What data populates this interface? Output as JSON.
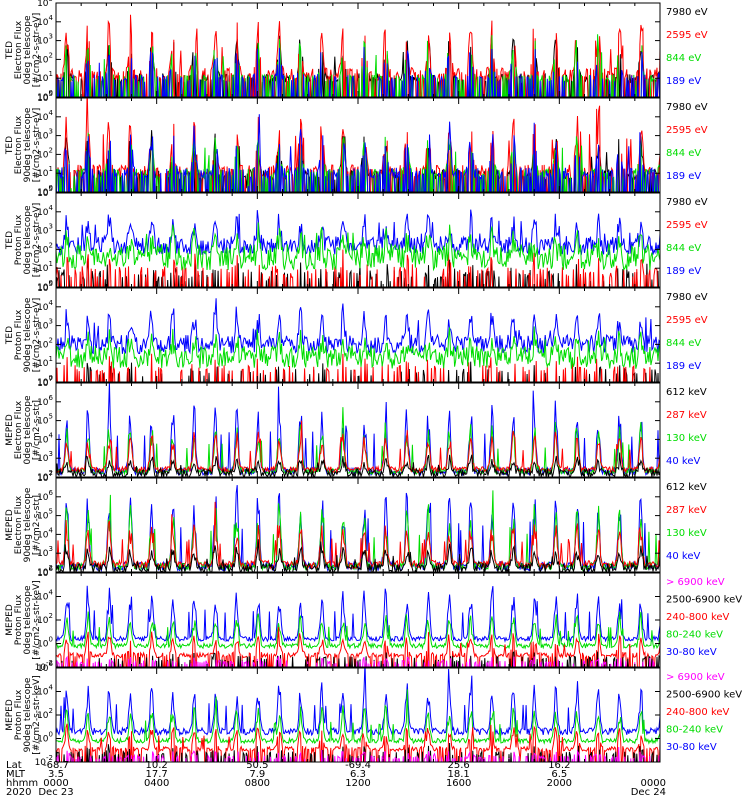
{
  "chart_data": [
    {
      "type": "line",
      "ylabel_lines": [
        "TED",
        "Electron Flux",
        "0deg telescope",
        "[#/cm2-s-str-eV]"
      ],
      "ylim_exp": [
        0,
        5
      ],
      "ytick_exps": [
        0,
        1,
        2,
        3,
        4,
        5
      ],
      "legend": [
        "7980 eV",
        "2595 eV",
        "844 eV",
        "189 eV"
      ],
      "colors": [
        "#000000",
        "#ff0000",
        "#00dd00",
        "#0000ff"
      ],
      "series": [
        {
          "name": "7980 eV",
          "base": 1.0,
          "amp": 2.0,
          "noise": 0.25,
          "density": 0.55
        },
        {
          "name": "2595 eV",
          "base": 1.2,
          "amp": 2.6,
          "noise": 0.35,
          "density": 0.6
        },
        {
          "name": "844 eV",
          "base": 1.0,
          "amp": 2.0,
          "noise": 0.2,
          "density": 0.4
        },
        {
          "name": "189 eV",
          "base": 1.0,
          "amp": 1.6,
          "noise": 0.2,
          "density": 0.3
        }
      ]
    },
    {
      "type": "line",
      "ylabel_lines": [
        "TED",
        "Electron Flux",
        "90deg telescope",
        "[#/cm2-s-str-eV]"
      ],
      "ylim_exp": [
        0,
        5
      ],
      "ytick_exps": [
        0,
        1,
        2,
        3,
        4,
        5
      ],
      "legend": [
        "7980 eV",
        "2595 eV",
        "844 eV",
        "189 eV"
      ],
      "colors": [
        "#000000",
        "#ff0000",
        "#00dd00",
        "#0000ff"
      ],
      "series": [
        {
          "name": "7980 eV",
          "base": 0.9,
          "amp": 2.0,
          "noise": 0.3,
          "density": 0.6
        },
        {
          "name": "2595 eV",
          "base": 1.1,
          "amp": 2.8,
          "noise": 0.35,
          "density": 0.6
        },
        {
          "name": "844 eV",
          "base": 1.0,
          "amp": 2.0,
          "noise": 0.25,
          "density": 0.5
        },
        {
          "name": "189 eV",
          "base": 1.0,
          "amp": 2.2,
          "noise": 0.3,
          "density": 0.5
        }
      ]
    },
    {
      "type": "line",
      "ylabel_lines": [
        "TED",
        "Proton Flux",
        "0deg telescope",
        "[#/cm2-s-str-eV]"
      ],
      "ylim_exp": [
        0,
        5
      ],
      "ytick_exps": [
        0,
        1,
        2,
        3,
        4,
        5
      ],
      "legend": [
        "7980 eV",
        "2595 eV",
        "844 eV",
        "189 eV"
      ],
      "colors": [
        "#000000",
        "#ff0000",
        "#00dd00",
        "#0000ff"
      ],
      "series": [
        {
          "name": "7980 eV",
          "base": 0.6,
          "amp": 0.6,
          "noise": 0.3,
          "density": 0.25
        },
        {
          "name": "2595 eV",
          "base": 0.8,
          "amp": 0.8,
          "noise": 0.3,
          "density": 0.3
        },
        {
          "name": "189 eV",
          "base": 2.2,
          "amp": 1.4,
          "noise": 0.5,
          "density": 1.0
        },
        {
          "name": "844 eV",
          "base": 1.6,
          "amp": 1.0,
          "noise": 0.7,
          "density": 1.0
        }
      ]
    },
    {
      "type": "line",
      "ylabel_lines": [
        "TED",
        "Proton Flux",
        "90deg telescope",
        "[#/cm2-s-str-eV]"
      ],
      "ylim_exp": [
        0,
        5
      ],
      "ytick_exps": [
        0,
        1,
        2,
        3,
        4,
        5
      ],
      "legend": [
        "7980 eV",
        "2595 eV",
        "844 eV",
        "189 eV"
      ],
      "colors": [
        "#000000",
        "#ff0000",
        "#00dd00",
        "#0000ff"
      ],
      "series": [
        {
          "name": "7980 eV",
          "base": 0.5,
          "amp": 0.4,
          "noise": 0.2,
          "density": 0.15
        },
        {
          "name": "2595 eV",
          "base": 0.7,
          "amp": 0.6,
          "noise": 0.2,
          "density": 0.2
        },
        {
          "name": "189 eV",
          "base": 2.0,
          "amp": 1.6,
          "noise": 0.5,
          "density": 1.0
        },
        {
          "name": "844 eV",
          "base": 1.3,
          "amp": 1.0,
          "noise": 0.6,
          "density": 1.0
        }
      ]
    },
    {
      "type": "line",
      "ylabel_lines": [
        "MEPED",
        "Electron Flux",
        "0deg telescope",
        "[#/cm2-s-str]"
      ],
      "ylim_exp": [
        2,
        7
      ],
      "ytick_exps": [
        2,
        3,
        4,
        5,
        6,
        7
      ],
      "legend": [
        "612 keV",
        "287 keV",
        "130 keV",
        "40 keV"
      ],
      "colors": [
        "#000000",
        "#ff0000",
        "#00dd00",
        "#0000ff"
      ],
      "series": [
        {
          "name": "40 keV",
          "base": 2.3,
          "amp": 3.2,
          "noise": 0.2,
          "density": 1.0
        },
        {
          "name": "130 keV",
          "base": 2.3,
          "amp": 2.2,
          "noise": 0.15,
          "density": 1.0
        },
        {
          "name": "287 keV",
          "base": 2.4,
          "amp": 1.8,
          "noise": 0.15,
          "density": 1.0
        },
        {
          "name": "612 keV",
          "base": 2.2,
          "amp": 0.7,
          "noise": 0.25,
          "density": 1.0
        }
      ]
    },
    {
      "type": "line",
      "ylabel_lines": [
        "MEPED",
        "Electron Flux",
        "90deg telescope",
        "[#/cm2-s-str]"
      ],
      "ylim_exp": [
        2,
        7
      ],
      "ytick_exps": [
        2,
        3,
        4,
        5,
        6,
        7
      ],
      "legend": [
        "612 keV",
        "287 keV",
        "130 keV",
        "40 keV"
      ],
      "colors": [
        "#000000",
        "#ff0000",
        "#00dd00",
        "#0000ff"
      ],
      "series": [
        {
          "name": "40 keV",
          "base": 2.3,
          "amp": 3.6,
          "noise": 0.25,
          "density": 1.0
        },
        {
          "name": "130 keV",
          "base": 2.3,
          "amp": 2.8,
          "noise": 0.2,
          "density": 1.0
        },
        {
          "name": "287 keV",
          "base": 2.4,
          "amp": 2.0,
          "noise": 0.2,
          "density": 1.0
        },
        {
          "name": "612 keV",
          "base": 2.2,
          "amp": 1.0,
          "noise": 0.25,
          "density": 1.0
        }
      ]
    },
    {
      "type": "line",
      "ylabel_lines": [
        "MEPED",
        "Proton Flux",
        "0deg telescope",
        "[#/cm2-s-str-keV]"
      ],
      "ylim_exp": [
        -2,
        6
      ],
      "ytick_exps": [
        -2,
        0,
        2,
        4,
        6
      ],
      "legend": [
        "> 6900 keV",
        "2500-6900 keV",
        "240-800 keV",
        "80-240 keV",
        "30-80 keV"
      ],
      "colors": [
        "#ff00ff",
        "#000000",
        "#ff0000",
        "#00dd00",
        "#0000ff"
      ],
      "series": [
        {
          "name": "30-80 keV",
          "base": 0.4,
          "amp": 3.8,
          "noise": 0.2,
          "density": 1.0
        },
        {
          "name": "80-240 keV",
          "base": -0.2,
          "amp": 2.4,
          "noise": 0.2,
          "density": 1.0
        },
        {
          "name": "240-800 keV",
          "base": -1.0,
          "amp": 1.6,
          "noise": 0.2,
          "density": 0.8
        },
        {
          "name": "2500-6900 keV",
          "base": -1.3,
          "amp": 0.6,
          "noise": 0.2,
          "density": 0.2
        },
        {
          "name": "> 6900 keV",
          "base": -1.6,
          "amp": 0.4,
          "noise": 0.15,
          "density": 0.3
        }
      ]
    },
    {
      "type": "line",
      "ylabel_lines": [
        "MEPED",
        "Proton Flux",
        "90deg telescope",
        "[#/cm2-s-str-keV]"
      ],
      "ylim_exp": [
        -2,
        6
      ],
      "ytick_exps": [
        -2,
        0,
        2,
        4,
        6
      ],
      "legend": [
        "> 6900 keV",
        "2500-6900 keV",
        "240-800 keV",
        "80-240 keV",
        "30-80 keV"
      ],
      "colors": [
        "#ff00ff",
        "#000000",
        "#ff0000",
        "#00dd00",
        "#0000ff"
      ],
      "series": [
        {
          "name": "30-80 keV",
          "base": 0.6,
          "amp": 3.6,
          "noise": 0.3,
          "density": 1.0
        },
        {
          "name": "80-240 keV",
          "base": -0.2,
          "amp": 2.6,
          "noise": 0.2,
          "density": 1.0
        },
        {
          "name": "240-800 keV",
          "base": -0.9,
          "amp": 1.8,
          "noise": 0.2,
          "density": 0.8
        },
        {
          "name": "2500-6900 keV",
          "base": -1.3,
          "amp": 0.7,
          "noise": 0.2,
          "density": 0.25
        },
        {
          "name": "> 6900 keV",
          "base": -1.6,
          "amp": 0.5,
          "noise": 0.15,
          "density": 0.35
        }
      ]
    }
  ],
  "xaxis": {
    "row_labels": [
      "Lat",
      "MLT",
      "hhmm",
      "2020"
    ],
    "ticks": [
      {
        "hours": 0,
        "lat": "-68.7",
        "mlt": "3.5",
        "hhmm": "0000",
        "date": "Dec 23"
      },
      {
        "hours": 4,
        "lat": "10.2",
        "mlt": "17.7",
        "hhmm": "0400",
        "date": ""
      },
      {
        "hours": 8,
        "lat": "50.5",
        "mlt": "7.9",
        "hhmm": "0800",
        "date": ""
      },
      {
        "hours": 12,
        "lat": "-69.4",
        "mlt": "6.3",
        "hhmm": "1200",
        "date": ""
      },
      {
        "hours": 16,
        "lat": "25.6",
        "mlt": "18.1",
        "hhmm": "1600",
        "date": ""
      },
      {
        "hours": 20,
        "lat": "16.2",
        "mlt": "6.5",
        "hhmm": "2000",
        "date": ""
      },
      {
        "hours": 24,
        "lat": "",
        "mlt": "",
        "hhmm": "0000",
        "date": "Dec 24"
      }
    ],
    "range_hours": [
      0,
      24
    ]
  }
}
